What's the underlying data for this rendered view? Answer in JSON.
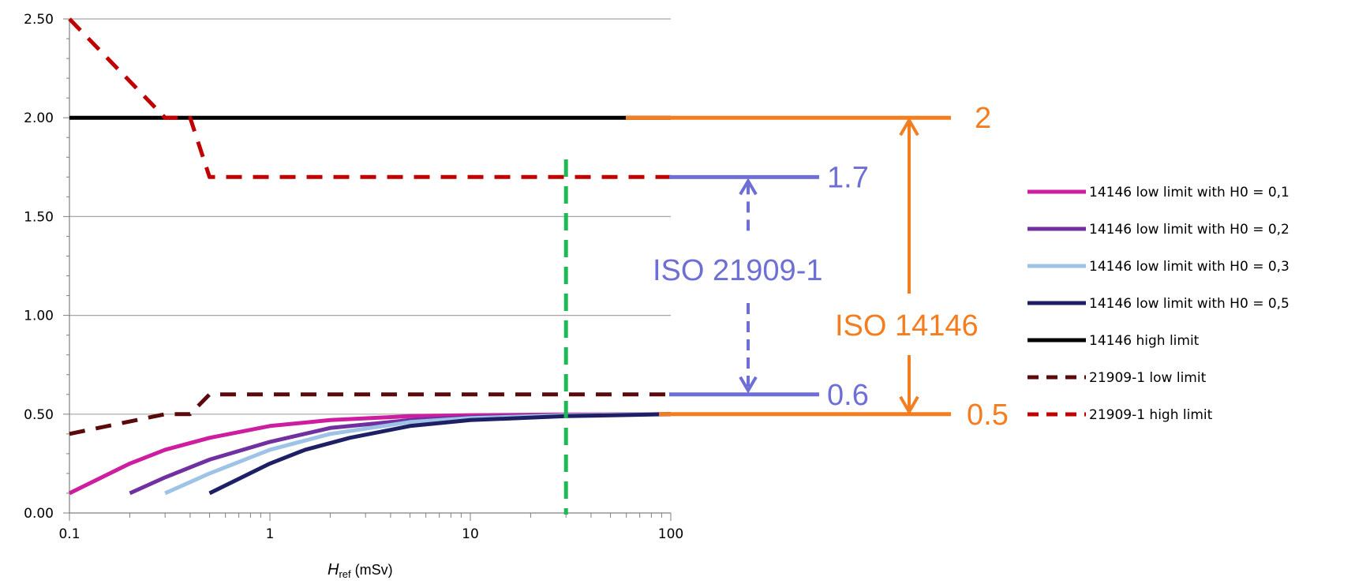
{
  "chart_data": {
    "type": "line",
    "xscale": "log",
    "xlim": [
      0.1,
      100
    ],
    "ylim": [
      0,
      2.5
    ],
    "grid": "horizontal",
    "legend_position": "right",
    "yticks": [
      "0.00",
      "0.50",
      "1.00",
      "1.50",
      "2.00",
      "2.50"
    ],
    "xticks": [
      "0.1",
      "1",
      "10",
      "100"
    ],
    "xlabel_main": "H",
    "xlabel_sub": "ref",
    "xlabel_unit": " (mSv)",
    "series": [
      {
        "name": "14146 low limit with H0 = 0,1",
        "color": "#CC1E9E",
        "dash": false,
        "x": [
          0.1,
          0.2,
          0.3,
          0.5,
          1,
          2,
          5,
          10,
          30,
          100
        ],
        "y": [
          0.1,
          0.25,
          0.32,
          0.38,
          0.44,
          0.47,
          0.49,
          0.495,
          0.498,
          0.5
        ]
      },
      {
        "name": "14146 low limit with H0 = 0,2",
        "color": "#7030A0",
        "dash": false,
        "x": [
          0.2,
          0.3,
          0.5,
          1,
          2,
          5,
          10,
          30,
          100
        ],
        "y": [
          0.1,
          0.18,
          0.27,
          0.36,
          0.43,
          0.47,
          0.485,
          0.495,
          0.5
        ]
      },
      {
        "name": "14146 low limit with H0 = 0,3",
        "color": "#9DC3E6",
        "dash": false,
        "x": [
          0.3,
          0.5,
          1,
          2,
          5,
          10,
          30,
          100
        ],
        "y": [
          0.1,
          0.2,
          0.32,
          0.4,
          0.46,
          0.48,
          0.495,
          0.5
        ]
      },
      {
        "name": "14146 low limit with H0 = 0,5",
        "color": "#1F1F66",
        "dash": false,
        "x": [
          0.5,
          1,
          1.5,
          2.5,
          5,
          10,
          30,
          100
        ],
        "y": [
          0.1,
          0.25,
          0.32,
          0.38,
          0.44,
          0.47,
          0.49,
          0.5
        ]
      },
      {
        "name": "14146 high limit",
        "color": "#000000",
        "dash": false,
        "x": [
          0.1,
          100
        ],
        "y": [
          2.0,
          2.0
        ]
      },
      {
        "name": "21909-1 low limit",
        "color": "#5A0A0A",
        "dash": true,
        "x": [
          0.1,
          0.3,
          0.4,
          0.5,
          100
        ],
        "y": [
          0.4,
          0.5,
          0.5,
          0.6,
          0.6
        ]
      },
      {
        "name": "21909-1 high limit",
        "color": "#C00000",
        "dash": true,
        "x": [
          0.1,
          0.3,
          0.4,
          0.5,
          100
        ],
        "y": [
          2.5,
          2.0,
          2.0,
          1.7,
          1.7
        ]
      }
    ],
    "annotations": {
      "iso14146_label": "ISO 14146",
      "iso14146_high": "2",
      "iso14146_low": "0.5",
      "iso21909_label": "ISO 21909-1",
      "iso21909_high": "1.7",
      "iso21909_low": "0.6",
      "green_line_x": 30
    },
    "colors": {
      "orange": "#F47D20",
      "blue": "#6E6FD6",
      "green": "#1DB954",
      "grid": "#A6A6A6"
    }
  }
}
